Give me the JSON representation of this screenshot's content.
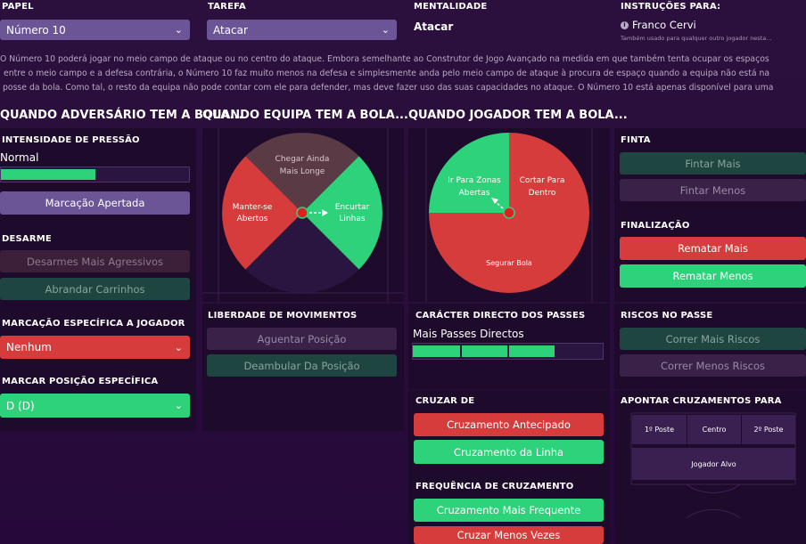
{
  "top": {
    "role": {
      "label": "PAPEL",
      "value": "Número 10"
    },
    "duty": {
      "label": "TAREFA",
      "value": "Atacar"
    },
    "mentality": {
      "label": "MENTALIDADE",
      "value": "Atacar"
    },
    "instructions": {
      "label": "INSTRUÇÕES PARA:",
      "player": "Franco Cervi",
      "note": "Também usado para qualquer outro jogador nesta..."
    }
  },
  "description": {
    "line1": "O Número 10 poderá jogar no meio campo de ataque ou no centro do ataque. Embora semelhante ao Construtor de Jogo Avançado na medida em que também tenta ocupar os espaços",
    "line2": "entre o meio campo e a defesa contrária, o Número 10 faz muito menos na defesa e simplesmente anda pelo meio campo de ataque à procura de espaço quando a equipa não está na",
    "line3": "posse da bola. Como tal, o resto da equipa não pode contar com ele para defender, mas deve fazer uso das suas capacidades no ataque. O Número 10 está apenas disponível para uma"
  },
  "sections": {
    "opp_ball": "QUANDO ADVERSÁRIO TEM A BOLA...",
    "team_ball": "QUANDO EQUIPA TEM A BOLA...",
    "player_ball": "QUANDO JOGADOR TEM A BOLA..."
  },
  "pressing": {
    "title": "INTENSIDADE DE PRESSÃO",
    "value": "Normal",
    "level": 0.5,
    "button": "Marcação Apertada"
  },
  "tackling": {
    "title": "DESARME",
    "btn1": "Desarmes Mais Agressivos",
    "btn2": "Abrandar Carrinhos"
  },
  "marking": {
    "title": "MARCAÇÃO ESPECÍFICA A JOGADOR",
    "value": "Nenhum"
  },
  "position_marking": {
    "title": "MARCAR POSIÇÃO ESPECÍFICA",
    "value": "D (D)"
  },
  "team_wheel": {
    "top": "Chegar Ainda Mais Longe",
    "left": "Manter-se Abertos",
    "right": "Encurtar Linhas"
  },
  "player_wheel": {
    "topleft": "Ir Para Zonas Abertas",
    "topright": "Cortar Para Dentro",
    "bottom": "Segurar Bola"
  },
  "freedom": {
    "title": "LIBERDADE DE MOVIMENTOS",
    "btn1": "Aguentar Posição",
    "btn2": "Deambular Da Posição"
  },
  "passing": {
    "title": "CARÁCTER DIRECTO DOS PASSES",
    "value": "Mais Passes Directos",
    "level": 0.75
  },
  "crossfrom": {
    "title": "CRUZAR DE",
    "btn1": "Cruzamento Antecipado",
    "btn2": "Cruzamento da Linha"
  },
  "crossfreq": {
    "title": "FREQUÊNCIA DE CRUZAMENTO",
    "btn1": "Cruzamento Mais Frequente",
    "btn2": "Cruzar Menos Vezes"
  },
  "dribble": {
    "title": "FINTA",
    "btn1": "Fintar Mais",
    "btn2": "Fintar Menos"
  },
  "shooting": {
    "title": "FINALIZAÇÃO",
    "btn1": "Rematar Mais",
    "btn2": "Rematar Menos"
  },
  "risky": {
    "title": "RISCOS NO PASSE",
    "btn1": "Correr Mais Riscos",
    "btn2": "Correr Menos Riscos"
  },
  "crosstarget": {
    "title": "APONTAR CRUZAMENTOS PARA",
    "near": "1º Poste",
    "centre": "Centro",
    "far": "2º Poste",
    "target": "Jogador Alvo"
  },
  "colors": {
    "background": "#2a0f3a",
    "green": "#2ed27a",
    "red": "#d63c3c",
    "purple": "#6b5596",
    "brown": "#5a3a44"
  }
}
